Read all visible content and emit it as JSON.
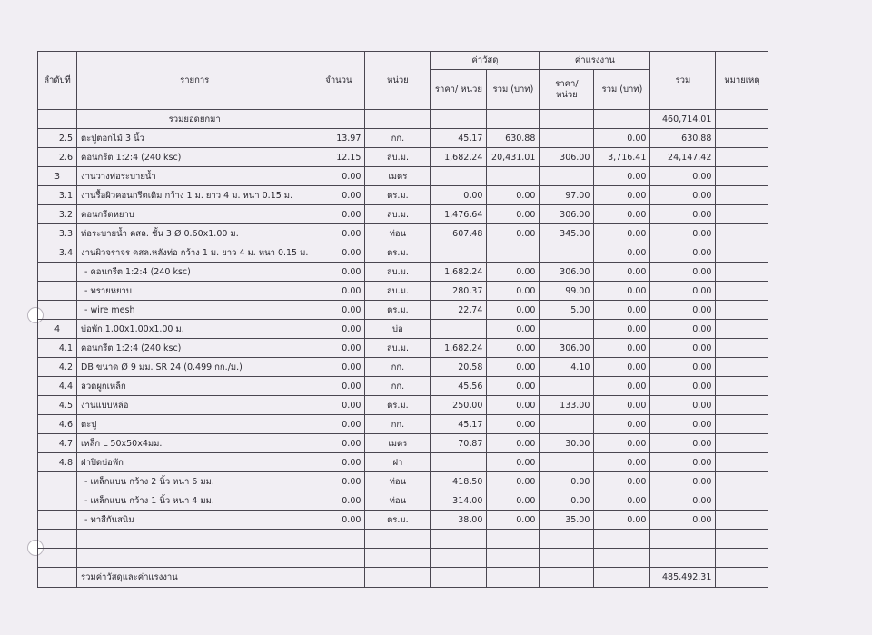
{
  "headers": {
    "no": "ลำดับที่",
    "item": "รายการ",
    "qty": "จำนวน",
    "unit": "หน่วย",
    "material": "ค่าวัสดุ",
    "labor": "ค่าแรงงาน",
    "price_per_unit": "ราคา/ หน่วย",
    "total_baht": "รวม (บาท)",
    "sum": "รวม",
    "remark": "หมายเหตุ"
  },
  "rows": [
    {
      "no": "",
      "item": "รวมยอดยกมา",
      "qty": "",
      "unit": "",
      "mp": "",
      "mt": "",
      "lp": "",
      "lt": "",
      "total": "460,714.01"
    },
    {
      "no": "2.5",
      "item": "ตะปูตอกไม้ 3 นิ้ว",
      "qty": "13.97",
      "unit": "กก.",
      "mp": "45.17",
      "mt": "630.88",
      "lp": "",
      "lt": "0.00",
      "total": "630.88"
    },
    {
      "no": "2.6",
      "item": "คอนกรีต 1:2:4 (240 ksc)",
      "qty": "12.15",
      "unit": "ลบ.ม.",
      "mp": "1,682.24",
      "mt": "20,431.01",
      "lp": "306.00",
      "lt": "3,716.41",
      "total": "24,147.42"
    },
    {
      "no": "3",
      "item": "งานวางท่อระบายน้ำ",
      "qty": "0.00",
      "unit": "เมตร",
      "mp": "",
      "mt": "",
      "lp": "",
      "lt": "0.00",
      "total": "0.00"
    },
    {
      "no": "3.1",
      "item": "งานรื้อผิวคอนกรีตเดิม กว้าง 1 ม. ยาว 4 ม. หนา 0.15 ม.",
      "qty": "0.00",
      "unit": "ตร.ม.",
      "mp": "0.00",
      "mt": "0.00",
      "lp": "97.00",
      "lt": "0.00",
      "total": "0.00"
    },
    {
      "no": "3.2",
      "item": "คอนกรีตหยาบ",
      "qty": "0.00",
      "unit": "ลบ.ม.",
      "mp": "1,476.64",
      "mt": "0.00",
      "lp": "306.00",
      "lt": "0.00",
      "total": "0.00"
    },
    {
      "no": "3.3",
      "item": "ท่อระบายน้ำ คสล. ชั้น 3 Ø 0.60x1.00 ม.",
      "qty": "0.00",
      "unit": "ท่อน",
      "mp": "607.48",
      "mt": "0.00",
      "lp": "345.00",
      "lt": "0.00",
      "total": "0.00"
    },
    {
      "no": "3.4",
      "item": "งานผิวจราจร คสล.หลังท่อ กว้าง 1 ม. ยาว 4 ม. หนา 0.15 ม.",
      "qty": "0.00",
      "unit": "ตร.ม.",
      "mp": "",
      "mt": "",
      "lp": "",
      "lt": "0.00",
      "total": "0.00"
    },
    {
      "no": "",
      "item": "- คอนกรีต 1:2:4 (240 ksc)",
      "qty": "0.00",
      "unit": "ลบ.ม.",
      "mp": "1,682.24",
      "mt": "0.00",
      "lp": "306.00",
      "lt": "0.00",
      "total": "0.00"
    },
    {
      "no": "",
      "item": "- ทรายหยาบ",
      "qty": "0.00",
      "unit": "ลบ.ม.",
      "mp": "280.37",
      "mt": "0.00",
      "lp": "99.00",
      "lt": "0.00",
      "total": "0.00"
    },
    {
      "no": "",
      "item": "- wire mesh",
      "qty": "0.00",
      "unit": "ตร.ม.",
      "mp": "22.74",
      "mt": "0.00",
      "lp": "5.00",
      "lt": "0.00",
      "total": "0.00"
    },
    {
      "no": "4",
      "item": "บ่อพัก 1.00x1.00x1.00 ม.",
      "qty": "0.00",
      "unit": "บ่อ",
      "mp": "",
      "mt": "0.00",
      "lp": "",
      "lt": "0.00",
      "total": "0.00"
    },
    {
      "no": "4.1",
      "item": "คอนกรีต 1:2:4 (240 ksc)",
      "qty": "0.00",
      "unit": "ลบ.ม.",
      "mp": "1,682.24",
      "mt": "0.00",
      "lp": "306.00",
      "lt": "0.00",
      "total": "0.00"
    },
    {
      "no": "4.2",
      "item": "DB ขนาด Ø 9 มม. SR 24 (0.499 กก./ม.)",
      "qty": "0.00",
      "unit": "กก.",
      "mp": "20.58",
      "mt": "0.00",
      "lp": "4.10",
      "lt": "0.00",
      "total": "0.00"
    },
    {
      "no": "4.4",
      "item": "ลวดผูกเหล็ก",
      "qty": "0.00",
      "unit": "กก.",
      "mp": "45.56",
      "mt": "0.00",
      "lp": "",
      "lt": "0.00",
      "total": "0.00"
    },
    {
      "no": "4.5",
      "item": "งานแบบหล่อ",
      "qty": "0.00",
      "unit": "ตร.ม.",
      "mp": "250.00",
      "mt": "0.00",
      "lp": "133.00",
      "lt": "0.00",
      "total": "0.00"
    },
    {
      "no": "4.6",
      "item": "ตะปู",
      "qty": "0.00",
      "unit": "กก.",
      "mp": "45.17",
      "mt": "0.00",
      "lp": "",
      "lt": "0.00",
      "total": "0.00"
    },
    {
      "no": "4.7",
      "item": "เหล็ก L 50x50x4มม.",
      "qty": "0.00",
      "unit": "เมตร",
      "mp": "70.87",
      "mt": "0.00",
      "lp": "30.00",
      "lt": "0.00",
      "total": "0.00"
    },
    {
      "no": "4.8",
      "item": "ฝาปิดบ่อพัก",
      "qty": "0.00",
      "unit": "ฝา",
      "mp": "",
      "mt": "0.00",
      "lp": "",
      "lt": "0.00",
      "total": "0.00"
    },
    {
      "no": "",
      "item": "- เหล็กแบน กว้าง 2 นิ้ว หนา 6 มม.",
      "qty": "0.00",
      "unit": "ท่อน",
      "mp": "418.50",
      "mt": "0.00",
      "lp": "0.00",
      "lt": "0.00",
      "total": "0.00"
    },
    {
      "no": "",
      "item": "- เหล็กแบน กว้าง 1 นิ้ว หนา 4 มม.",
      "qty": "0.00",
      "unit": "ท่อน",
      "mp": "314.00",
      "mt": "0.00",
      "lp": "0.00",
      "lt": "0.00",
      "total": "0.00"
    },
    {
      "no": "",
      "item": "- ทาสีกันสนิม",
      "qty": "0.00",
      "unit": "ตร.ม.",
      "mp": "38.00",
      "mt": "0.00",
      "lp": "35.00",
      "lt": "0.00",
      "total": "0.00"
    },
    {
      "no": "",
      "item": "",
      "qty": "",
      "unit": "",
      "mp": "",
      "mt": "",
      "lp": "",
      "lt": "",
      "total": ""
    },
    {
      "no": "",
      "item": "",
      "qty": "",
      "unit": "",
      "mp": "",
      "mt": "",
      "lp": "",
      "lt": "",
      "total": ""
    }
  ],
  "grand_total": {
    "label": "รวมค่าวัสดุและค่าแรงงาน",
    "value": "485,492.31"
  }
}
